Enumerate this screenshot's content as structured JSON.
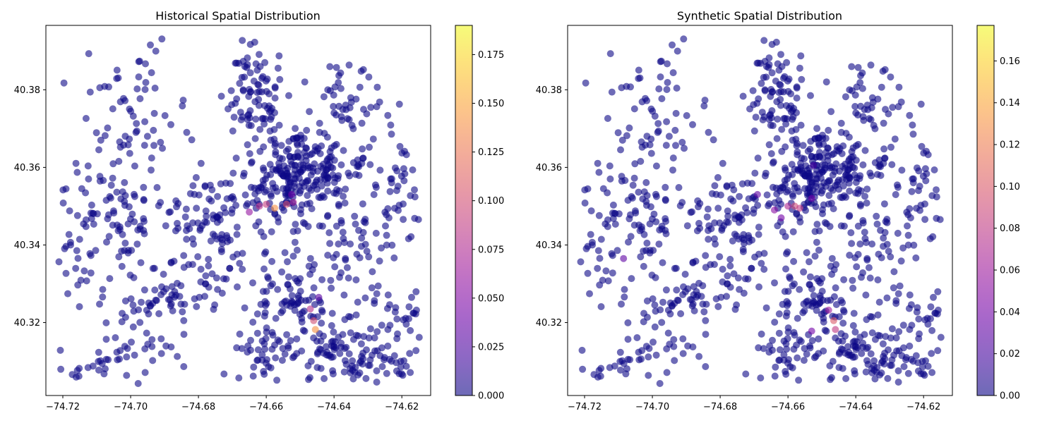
{
  "chart_data": [
    {
      "type": "scatter",
      "title": "Historical Spatial Distribution",
      "xlabel": "",
      "ylabel": "",
      "xlim": [
        -74.725,
        -74.6115
      ],
      "ylim": [
        40.3012,
        40.3966
      ],
      "x_ticks": [
        -74.72,
        -74.7,
        -74.68,
        -74.66,
        -74.64,
        -74.62
      ],
      "x_tick_labels": [
        "−74.72",
        "−74.70",
        "−74.68",
        "−74.66",
        "−74.64",
        "−74.62"
      ],
      "y_ticks": [
        40.32,
        40.34,
        40.36,
        40.38
      ],
      "y_tick_labels": [
        "40.32",
        "40.34",
        "40.36",
        "40.38"
      ],
      "grid": false,
      "colormap": "plasma",
      "marker_alpha": 0.6,
      "colorbar": {
        "min": 0.0,
        "max": 0.19,
        "ticks": [
          0.0,
          0.025,
          0.05,
          0.075,
          0.1,
          0.125,
          0.15,
          0.175
        ],
        "tick_labels": [
          "0.000",
          "0.025",
          "0.050",
          "0.075",
          "0.100",
          "0.125",
          "0.150",
          "0.175"
        ]
      },
      "clusters": [
        {
          "cx": -74.651,
          "cy": 40.358,
          "sx": 0.009,
          "sy": 0.005,
          "n": 230
        },
        {
          "cx": -74.664,
          "cy": 40.38,
          "sx": 0.004,
          "sy": 0.007,
          "n": 90
        },
        {
          "cx": -74.636,
          "cy": 40.375,
          "sx": 0.007,
          "sy": 0.007,
          "n": 60
        },
        {
          "cx": -74.7,
          "cy": 40.375,
          "sx": 0.008,
          "sy": 0.01,
          "n": 60
        },
        {
          "cx": -74.672,
          "cy": 40.344,
          "sx": 0.012,
          "sy": 0.008,
          "n": 120
        },
        {
          "cx": -74.706,
          "cy": 40.348,
          "sx": 0.008,
          "sy": 0.008,
          "n": 80
        },
        {
          "cx": -74.636,
          "cy": 40.34,
          "sx": 0.008,
          "sy": 0.008,
          "n": 70
        },
        {
          "cx": -74.65,
          "cy": 40.326,
          "sx": 0.008,
          "sy": 0.005,
          "n": 80
        },
        {
          "cx": -74.638,
          "cy": 40.311,
          "sx": 0.009,
          "sy": 0.005,
          "n": 100
        },
        {
          "cx": -74.624,
          "cy": 40.318,
          "sx": 0.006,
          "sy": 0.009,
          "n": 60
        },
        {
          "cx": -74.698,
          "cy": 40.318,
          "sx": 0.008,
          "sy": 0.009,
          "n": 60
        },
        {
          "cx": -74.662,
          "cy": 40.313,
          "sx": 0.005,
          "sy": 0.005,
          "n": 40
        },
        {
          "cx": -74.686,
          "cy": 40.33,
          "sx": 0.006,
          "sy": 0.005,
          "n": 40
        },
        {
          "cx": -74.62,
          "cy": 40.355,
          "sx": 0.003,
          "sy": 0.006,
          "n": 30
        },
        {
          "cx": -74.709,
          "cy": 40.309,
          "sx": 0.005,
          "sy": 0.003,
          "n": 20
        },
        {
          "cx": -74.716,
          "cy": 40.335,
          "sx": 0.004,
          "sy": 0.007,
          "n": 20
        }
      ],
      "highlight_points": [
        {
          "x": -74.665,
          "y": 40.3485,
          "v": 0.06
        },
        {
          "x": -74.662,
          "y": 40.35,
          "v": 0.08
        },
        {
          "x": -74.66,
          "y": 40.3505,
          "v": 0.09
        },
        {
          "x": -74.6575,
          "y": 40.3495,
          "v": 0.14
        },
        {
          "x": -74.654,
          "y": 40.3505,
          "v": 0.1
        },
        {
          "x": -74.652,
          "y": 40.351,
          "v": 0.07
        },
        {
          "x": -74.6525,
          "y": 40.353,
          "v": 0.04
        },
        {
          "x": -74.647,
          "y": 40.3235,
          "v": 0.08
        },
        {
          "x": -74.646,
          "y": 40.3205,
          "v": 0.1
        },
        {
          "x": -74.6455,
          "y": 40.3182,
          "v": 0.14
        },
        {
          "x": -74.6445,
          "y": 40.3265,
          "v": 0.03
        }
      ]
    },
    {
      "type": "scatter",
      "title": "Synthetic Spatial Distribution",
      "xlabel": "",
      "ylabel": "",
      "xlim": [
        -74.725,
        -74.6115
      ],
      "ylim": [
        40.3012,
        40.3966
      ],
      "x_ticks": [
        -74.72,
        -74.7,
        -74.68,
        -74.66,
        -74.64,
        -74.62
      ],
      "x_tick_labels": [
        "−74.72",
        "−74.70",
        "−74.68",
        "−74.66",
        "−74.64",
        "−74.62"
      ],
      "y_ticks": [
        40.32,
        40.34,
        40.36,
        40.38
      ],
      "y_tick_labels": [
        "40.32",
        "40.34",
        "40.36",
        "40.38"
      ],
      "grid": false,
      "colormap": "plasma",
      "marker_alpha": 0.6,
      "colorbar": {
        "min": 0.0,
        "max": 0.177,
        "ticks": [
          0.0,
          0.02,
          0.04,
          0.06,
          0.08,
          0.1,
          0.12,
          0.14,
          0.16
        ],
        "tick_labels": [
          "0.00",
          "0.02",
          "0.04",
          "0.06",
          "0.08",
          "0.10",
          "0.12",
          "0.14",
          "0.16"
        ]
      },
      "clusters": [
        {
          "cx": -74.651,
          "cy": 40.358,
          "sx": 0.009,
          "sy": 0.005,
          "n": 230
        },
        {
          "cx": -74.664,
          "cy": 40.38,
          "sx": 0.004,
          "sy": 0.007,
          "n": 90
        },
        {
          "cx": -74.636,
          "cy": 40.375,
          "sx": 0.007,
          "sy": 0.007,
          "n": 60
        },
        {
          "cx": -74.7,
          "cy": 40.375,
          "sx": 0.008,
          "sy": 0.01,
          "n": 60
        },
        {
          "cx": -74.672,
          "cy": 40.344,
          "sx": 0.012,
          "sy": 0.008,
          "n": 120
        },
        {
          "cx": -74.706,
          "cy": 40.348,
          "sx": 0.008,
          "sy": 0.008,
          "n": 80
        },
        {
          "cx": -74.636,
          "cy": 40.34,
          "sx": 0.008,
          "sy": 0.008,
          "n": 70
        },
        {
          "cx": -74.65,
          "cy": 40.326,
          "sx": 0.008,
          "sy": 0.005,
          "n": 80
        },
        {
          "cx": -74.638,
          "cy": 40.311,
          "sx": 0.009,
          "sy": 0.005,
          "n": 100
        },
        {
          "cx": -74.624,
          "cy": 40.318,
          "sx": 0.006,
          "sy": 0.009,
          "n": 60
        },
        {
          "cx": -74.698,
          "cy": 40.318,
          "sx": 0.008,
          "sy": 0.009,
          "n": 60
        },
        {
          "cx": -74.662,
          "cy": 40.313,
          "sx": 0.005,
          "sy": 0.005,
          "n": 40
        },
        {
          "cx": -74.686,
          "cy": 40.33,
          "sx": 0.006,
          "sy": 0.005,
          "n": 40
        },
        {
          "cx": -74.62,
          "cy": 40.355,
          "sx": 0.003,
          "sy": 0.006,
          "n": 30
        },
        {
          "cx": -74.709,
          "cy": 40.309,
          "sx": 0.005,
          "sy": 0.003,
          "n": 20
        },
        {
          "cx": -74.716,
          "cy": 40.335,
          "sx": 0.004,
          "sy": 0.007,
          "n": 20
        }
      ],
      "highlight_points": [
        {
          "x": -74.669,
          "y": 40.353,
          "v": 0.03
        },
        {
          "x": -74.664,
          "y": 40.349,
          "v": 0.05
        },
        {
          "x": -74.662,
          "y": 40.347,
          "v": 0.04
        },
        {
          "x": -74.66,
          "y": 40.35,
          "v": 0.07
        },
        {
          "x": -74.658,
          "y": 40.35,
          "v": 0.09
        },
        {
          "x": -74.6565,
          "y": 40.3495,
          "v": 0.08
        },
        {
          "x": -74.653,
          "y": 40.352,
          "v": 0.04
        },
        {
          "x": -74.7085,
          "y": 40.3365,
          "v": 0.03
        },
        {
          "x": -74.6525,
          "y": 40.3605,
          "v": 0.02
        },
        {
          "x": -74.648,
          "y": 40.3232,
          "v": 0.06
        },
        {
          "x": -74.6465,
          "y": 40.3205,
          "v": 0.1
        },
        {
          "x": -74.646,
          "y": 40.3182,
          "v": 0.08
        },
        {
          "x": -74.653,
          "y": 40.3178,
          "v": 0.04
        }
      ]
    }
  ]
}
